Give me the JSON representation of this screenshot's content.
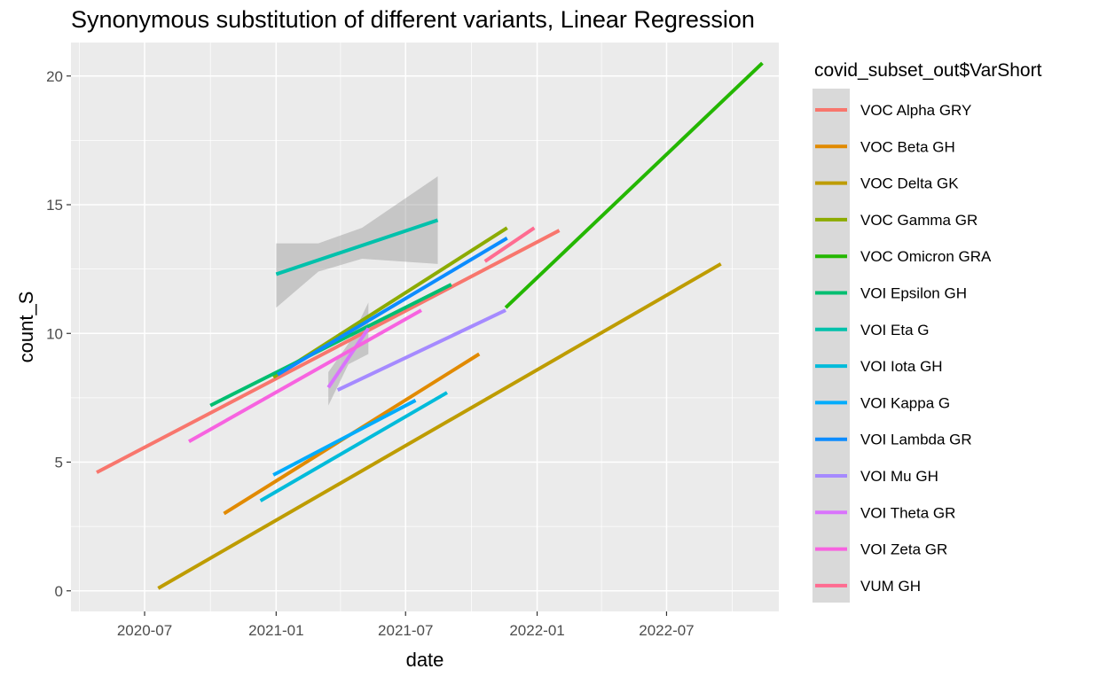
{
  "chart_data": {
    "type": "line",
    "title": "Synonymous substitution of different variants, Linear Regression",
    "xlabel": "date",
    "ylabel": "count_S",
    "x_type": "date",
    "xlim": [
      "2020-03-20",
      "2022-12-05"
    ],
    "ylim": [
      -0.8,
      21.3
    ],
    "x_ticks": [
      {
        "value": "2020-07-01",
        "label": "2020-07"
      },
      {
        "value": "2021-01-01",
        "label": "2021-01"
      },
      {
        "value": "2021-07-01",
        "label": "2021-07"
      },
      {
        "value": "2022-01-01",
        "label": "2022-01"
      },
      {
        "value": "2022-07-01",
        "label": "2022-07"
      }
    ],
    "x_minor_ticks": [
      "2020-04-01",
      "2020-10-01",
      "2021-04-01",
      "2021-10-01",
      "2022-04-01",
      "2022-10-01"
    ],
    "y_ticks": [
      0,
      5,
      10,
      15,
      20
    ],
    "y_minor_ticks": [
      2.5,
      7.5,
      12.5,
      17.5
    ],
    "grid": true,
    "legend_position": "right",
    "legend_title": "covid_subset_out$VarShort",
    "background": "#ebebeb",
    "series": [
      {
        "name": "VOC Alpha GRY",
        "color": "#F8766D",
        "x": [
          "2020-04-25",
          "2022-02-01"
        ],
        "y": [
          4.6,
          14.0
        ]
      },
      {
        "name": "VOC Beta GH",
        "color": "#E18A00",
        "x": [
          "2020-10-20",
          "2021-10-12"
        ],
        "y": [
          3.0,
          9.2
        ]
      },
      {
        "name": "VOC Delta GK",
        "color": "#BE9C00",
        "x": [
          "2020-07-20",
          "2022-09-15"
        ],
        "y": [
          0.1,
          12.7
        ]
      },
      {
        "name": "VOC Gamma GR",
        "color": "#8CAB00",
        "x": [
          "2020-12-28",
          "2021-11-20"
        ],
        "y": [
          8.3,
          14.1
        ]
      },
      {
        "name": "VOC Omicron GRA",
        "color": "#24B700",
        "x": [
          "2021-11-18",
          "2022-11-12"
        ],
        "y": [
          11.0,
          20.5
        ]
      },
      {
        "name": "VOI Epsilon GH",
        "color": "#00BE70",
        "x": [
          "2020-10-01",
          "2021-09-03"
        ],
        "y": [
          7.2,
          11.9
        ]
      },
      {
        "name": "VOI Eta G",
        "color": "#00C1AB",
        "x": [
          "2021-01-01",
          "2021-08-15"
        ],
        "y": [
          12.3,
          14.4
        ],
        "ci": {
          "x": [
            "2021-01-01",
            "2021-03-01",
            "2021-05-01",
            "2021-08-15"
          ],
          "lower": [
            11.0,
            12.4,
            12.9,
            12.7
          ],
          "upper": [
            13.5,
            13.5,
            14.1,
            16.1
          ]
        }
      },
      {
        "name": "VOI Iota GH",
        "color": "#00BBDA",
        "x": [
          "2020-12-10",
          "2021-08-28"
        ],
        "y": [
          3.5,
          7.7
        ]
      },
      {
        "name": "VOI Kappa G",
        "color": "#00ACFC",
        "x": [
          "2020-12-28",
          "2021-07-15"
        ],
        "y": [
          4.5,
          7.4
        ]
      },
      {
        "name": "VOI Lambda GR",
        "color": "#0C8CFF",
        "x": [
          "2021-01-03",
          "2021-11-20"
        ],
        "y": [
          8.4,
          13.7
        ]
      },
      {
        "name": "VOI Mu GH",
        "color": "#A58AFF",
        "x": [
          "2021-03-28",
          "2021-11-18"
        ],
        "y": [
          7.8,
          10.9
        ]
      },
      {
        "name": "VOI Theta GR",
        "color": "#D973FC",
        "x": [
          "2021-03-15",
          "2021-05-10"
        ],
        "y": [
          7.9,
          10.2
        ],
        "ci": {
          "x": [
            "2021-03-15",
            "2021-04-12",
            "2021-05-10"
          ],
          "lower": [
            7.2,
            8.8,
            9.2
          ],
          "upper": [
            8.5,
            9.6,
            11.2
          ]
        }
      },
      {
        "name": "VOI Zeta GR",
        "color": "#F763E0",
        "x": [
          "2020-09-01",
          "2021-07-23"
        ],
        "y": [
          5.8,
          10.9
        ]
      },
      {
        "name": "VUM GH",
        "color": "#FF6C91",
        "x": [
          "2021-10-20",
          "2021-12-28"
        ],
        "y": [
          12.8,
          14.1
        ]
      }
    ]
  }
}
